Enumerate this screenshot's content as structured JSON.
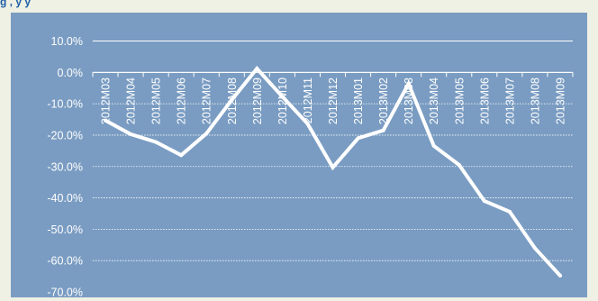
{
  "caption": "g                                , y y",
  "colors": {
    "page_background": "#eef1e4",
    "plot_background": "#7a9cc2",
    "line": "#ffffff",
    "grid": "#ffffff",
    "text": "#ffffff",
    "caption": "#1f5fa8"
  },
  "chart_data": {
    "type": "line",
    "title": "",
    "xlabel": "",
    "ylabel": "",
    "ylim": [
      -70,
      10
    ],
    "yticks": [
      10,
      0,
      -10,
      -20,
      -30,
      -40,
      -50,
      -60,
      -70
    ],
    "ytick_labels": [
      "10.0%",
      "0.0%",
      "-10.0%",
      "-20.0%",
      "-30.0%",
      "-40.0%",
      "-50.0%",
      "-60.0%",
      "-70.0%"
    ],
    "grid": true,
    "categories": [
      "2012M03",
      "2012M04",
      "2012M05",
      "2012M06",
      "2012M07",
      "2012M08",
      "2012M09",
      "2012M10",
      "2012M11",
      "2012M12",
      "2013M01",
      "2013M02",
      "2013M03",
      "2013M04",
      "2013M05",
      "2013M06",
      "2013M07",
      "2013M08",
      "2013M09"
    ],
    "series": [
      {
        "values": [
          -15.3,
          -19.7,
          -22.2,
          -26.4,
          -19.5,
          -8.8,
          1.2,
          -7.7,
          -16.3,
          -30.3,
          -21.0,
          -18.5,
          -3.6,
          -23.4,
          -29.5,
          -41.0,
          -44.4,
          -56.0,
          -64.8
        ]
      }
    ]
  }
}
